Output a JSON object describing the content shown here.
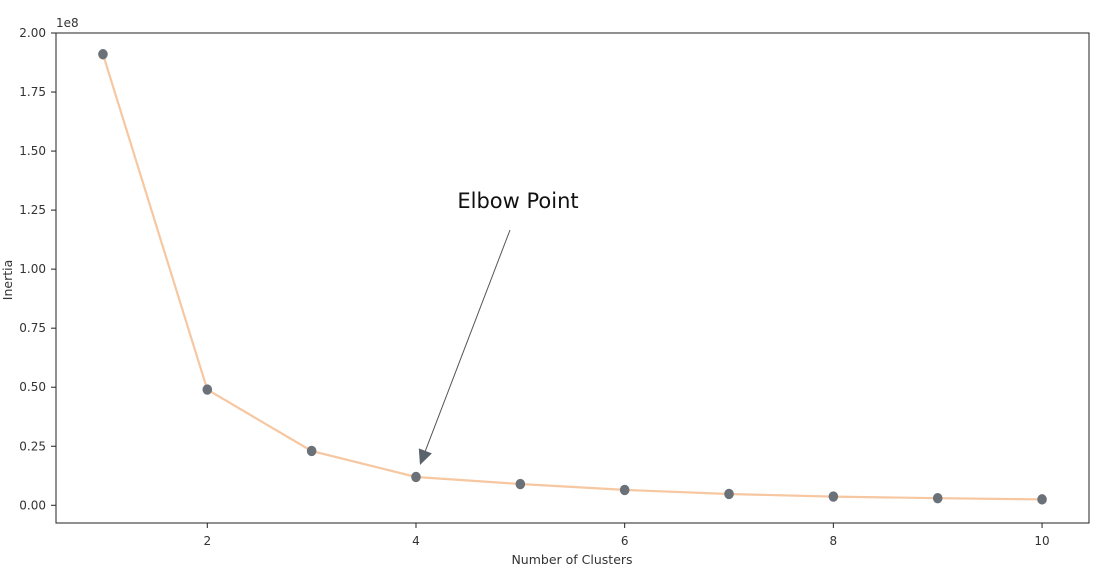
{
  "chart_data": {
    "type": "line",
    "title": "",
    "xlabel": "Number of Clusters",
    "ylabel": "Inertia",
    "y_scale_label": "1e8",
    "x": [
      1,
      2,
      3,
      4,
      5,
      6,
      7,
      8,
      9,
      10
    ],
    "series": [
      {
        "values": [
          1.91,
          0.49,
          0.23,
          0.12,
          0.09,
          0.065,
          0.048,
          0.037,
          0.03,
          0.025
        ],
        "line_color": "#f6c7a0",
        "marker_color": "#6b7178"
      }
    ],
    "xlim": [
      0.55,
      10.45
    ],
    "ylim": [
      -0.075,
      2.0
    ],
    "x_ticks": [
      {
        "value": 2,
        "label": "2"
      },
      {
        "value": 4,
        "label": "4"
      },
      {
        "value": 6,
        "label": "6"
      },
      {
        "value": 8,
        "label": "8"
      },
      {
        "value": 10,
        "label": "10"
      }
    ],
    "y_ticks": [
      {
        "value": 0.0,
        "label": "0.00"
      },
      {
        "value": 0.25,
        "label": "0.25"
      },
      {
        "value": 0.5,
        "label": "0.50"
      },
      {
        "value": 0.75,
        "label": "0.75"
      },
      {
        "value": 1.0,
        "label": "1.00"
      },
      {
        "value": 1.25,
        "label": "1.25"
      },
      {
        "value": 1.5,
        "label": "1.50"
      },
      {
        "value": 1.75,
        "label": "1.75"
      },
      {
        "value": 2.0,
        "label": "2.00"
      }
    ],
    "grid": false,
    "annotations": [
      {
        "text": "Elbow Point",
        "target": {
          "x": 4,
          "y": 0.12
        }
      }
    ]
  }
}
